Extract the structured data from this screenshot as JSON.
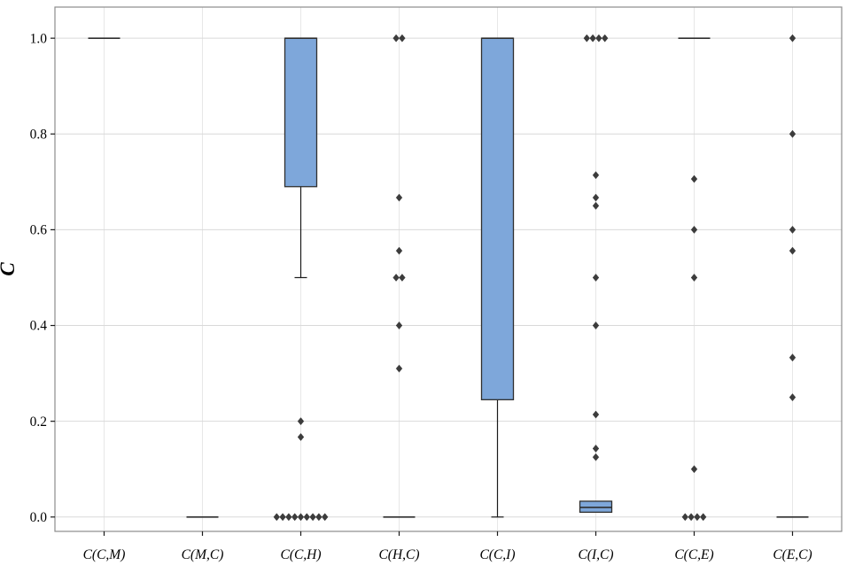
{
  "chart_data": {
    "type": "boxplot",
    "title": "",
    "xlabel": "",
    "ylabel": "C",
    "ylim": [
      -0.03,
      1.065
    ],
    "ytick_values": [
      0.0,
      0.2,
      0.4,
      0.6,
      0.8,
      1.0
    ],
    "ytick_labels": [
      "0.0",
      "0.2",
      "0.4",
      "0.6",
      "0.8",
      "1.0"
    ],
    "categories": [
      "C(C,M)",
      "C(M,C)",
      "C(C,H)",
      "C(H,C)",
      "C(C,I)",
      "C(I,C)",
      "C(C,E)",
      "C(E,C)"
    ],
    "grid": true,
    "legend_position": "none",
    "colors": {
      "box_fill": "#7ea7da",
      "box_edge": "#2f2f2f",
      "whisker": "#1a1a1a",
      "outlier": "#3c3c3c",
      "grid_major": "#d9d9d9",
      "grid_vertical": "#e7e7e7",
      "panel_border": "#8c8c8c",
      "background": "#ffffff",
      "text": "#000000"
    },
    "boxes": [
      {
        "category": "C(C,M)",
        "whisker_low": 1.0,
        "q1": 1.0,
        "median": 1.0,
        "q3": 1.0,
        "whisker_high": 1.0,
        "outliers": []
      },
      {
        "category": "C(M,C)",
        "whisker_low": 0.0,
        "q1": 0.0,
        "median": 0.0,
        "q3": 0.0,
        "whisker_high": 0.0,
        "outliers": []
      },
      {
        "category": "C(C,H)",
        "whisker_low": 0.5,
        "q1": 0.69,
        "median": 1.0,
        "q3": 1.0,
        "whisker_high": 1.0,
        "outliers": [
          0.2,
          0.167,
          0.0,
          0.0,
          0.0,
          0.0,
          0.0,
          0.0,
          0.0,
          0.0,
          0.0
        ]
      },
      {
        "category": "C(H,C)",
        "whisker_low": 0.0,
        "q1": 0.0,
        "median": 0.0,
        "q3": 0.0,
        "whisker_high": 0.0,
        "outliers": [
          1.0,
          1.0,
          0.667,
          0.556,
          0.5,
          0.5,
          0.4,
          0.31
        ]
      },
      {
        "category": "C(C,I)",
        "whisker_low": 0.0,
        "q1": 0.245,
        "median": 1.0,
        "q3": 1.0,
        "whisker_high": 1.0,
        "outliers": []
      },
      {
        "category": "C(I,C)",
        "whisker_low": 0.01,
        "q1": 0.01,
        "median": 0.02,
        "q3": 0.033,
        "whisker_high": 0.033,
        "outliers": [
          1.0,
          1.0,
          1.0,
          1.0,
          0.714,
          0.667,
          0.65,
          0.5,
          0.4,
          0.214,
          0.143,
          0.125
        ]
      },
      {
        "category": "C(C,E)",
        "whisker_low": 1.0,
        "q1": 1.0,
        "median": 1.0,
        "q3": 1.0,
        "whisker_high": 1.0,
        "outliers": [
          0.706,
          0.6,
          0.5,
          0.1,
          0.0,
          0.0,
          0.0,
          0.0
        ]
      },
      {
        "category": "C(E,C)",
        "whisker_low": 0.0,
        "q1": 0.0,
        "median": 0.0,
        "q3": 0.0,
        "whisker_high": 0.0,
        "outliers": [
          1.0,
          0.8,
          0.6,
          0.556,
          0.333,
          0.25
        ]
      }
    ]
  }
}
